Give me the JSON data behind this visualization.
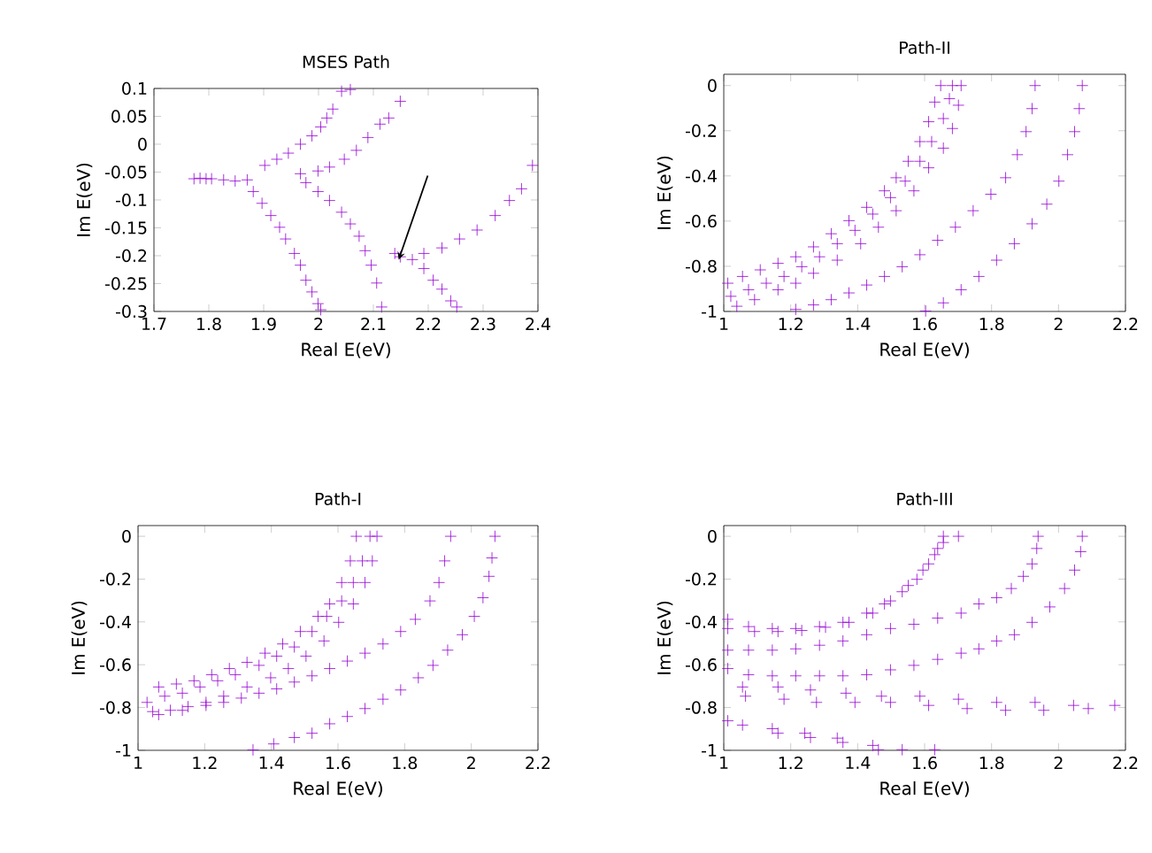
{
  "chart_data": [
    {
      "type": "scatter",
      "title": "MSES Path",
      "xlabel": "Real E(eV)",
      "ylabel": "Im E(eV)",
      "marker": "cross",
      "xlim": [
        1.7,
        2.4
      ],
      "xticks": [
        1.7,
        1.8,
        1.9,
        2,
        2.1,
        2.2,
        2.3,
        2.4
      ],
      "ylim": [
        -0.3,
        0.1
      ],
      "yticks": [
        0.1,
        0.05,
        0,
        -0.05,
        -0.1,
        -0.15,
        -0.2,
        -0.25,
        -0.3
      ],
      "series": [
        {
          "color": "#9400d3",
          "x": [
            1.773,
            1.784,
            1.795,
            1.805,
            1.827,
            1.848,
            1.87,
            1.902,
            1.924,
            1.945,
            1.967,
            1.988,
            2.004,
            2.015,
            2.026,
            2.042,
            2.058,
            1.967,
            1.999,
            2.02,
            2.047,
            2.069,
            2.09,
            2.112,
            2.128,
            2.149,
            1.881,
            1.897,
            1.913,
            1.929,
            1.94,
            1.956,
            1.967,
            1.977,
            1.988,
            1.999,
            2.004,
            1.977,
            1.999,
            2.02,
            2.042,
            2.058,
            2.074,
            2.085,
            2.096,
            2.106,
            2.115,
            2.139,
            2.149,
            2.171,
            2.192,
            2.209,
            2.225,
            2.241,
            2.252,
            2.192,
            2.225,
            2.257,
            2.289,
            2.322,
            2.348,
            2.37,
            2.39
          ],
          "values": [
            -0.062,
            -0.061,
            -0.062,
            -0.062,
            -0.064,
            -0.066,
            -0.064,
            -0.038,
            -0.027,
            -0.016,
            0.0,
            0.015,
            0.031,
            0.047,
            0.063,
            0.095,
            0.098,
            -0.053,
            -0.048,
            -0.041,
            -0.027,
            -0.011,
            0.012,
            0.036,
            0.047,
            0.077,
            -0.085,
            -0.106,
            -0.128,
            -0.149,
            -0.17,
            -0.196,
            -0.217,
            -0.244,
            -0.265,
            -0.286,
            -0.297,
            -0.069,
            -0.085,
            -0.101,
            -0.122,
            -0.143,
            -0.165,
            -0.191,
            -0.217,
            -0.249,
            -0.292,
            -0.196,
            -0.202,
            -0.207,
            -0.223,
            -0.244,
            -0.26,
            -0.281,
            -0.292,
            -0.196,
            -0.186,
            -0.17,
            -0.154,
            -0.128,
            -0.101,
            -0.08,
            -0.038
          ]
        }
      ]
    },
    {
      "type": "scatter",
      "title": "Path-II",
      "xlabel": "Real E(eV)",
      "ylabel": "Im E(eV)",
      "marker": "cross",
      "xlim": [
        1,
        2.2
      ],
      "xticks": [
        1,
        1.2,
        1.4,
        1.6,
        1.8,
        2,
        2.2
      ],
      "ylim": [
        -1,
        0.05
      ],
      "yticks": [
        0,
        -0.2,
        -0.4,
        -0.6,
        -0.8,
        -1
      ],
      "series": [
        {
          "color": "#9400d3",
          "x": [
            1.012,
            1.056,
            1.109,
            1.162,
            1.215,
            1.268,
            1.321,
            1.374,
            1.427,
            1.48,
            1.515,
            1.551,
            1.586,
            1.612,
            1.63,
            1.648,
            1.021,
            1.074,
            1.127,
            1.18,
            1.233,
            1.286,
            1.339,
            1.392,
            1.445,
            1.498,
            1.542,
            1.586,
            1.621,
            1.656,
            1.674,
            1.683,
            1.039,
            1.092,
            1.162,
            1.215,
            1.268,
            1.339,
            1.409,
            1.462,
            1.515,
            1.568,
            1.612,
            1.656,
            1.683,
            1.701,
            1.709,
            1.215,
            1.268,
            1.321,
            1.374,
            1.427,
            1.48,
            1.533,
            1.586,
            1.639,
            1.692,
            1.745,
            1.798,
            1.842,
            1.877,
            1.903,
            1.921,
            1.93,
            1.603,
            1.656,
            1.709,
            1.762,
            1.815,
            1.868,
            1.921,
            1.965,
            2.001,
            2.027,
            2.048,
            2.062,
            2.071
          ],
          "values": [
            -0.875,
            -0.845,
            -0.816,
            -0.787,
            -0.758,
            -0.714,
            -0.656,
            -0.598,
            -0.539,
            -0.466,
            -0.408,
            -0.335,
            -0.248,
            -0.16,
            -0.073,
            0,
            -0.933,
            -0.904,
            -0.875,
            -0.845,
            -0.802,
            -0.758,
            -0.7,
            -0.641,
            -0.569,
            -0.496,
            -0.423,
            -0.335,
            -0.248,
            -0.146,
            -0.058,
            0,
            -0.977,
            -0.948,
            -0.904,
            -0.875,
            -0.831,
            -0.773,
            -0.7,
            -0.627,
            -0.554,
            -0.466,
            -0.364,
            -0.277,
            -0.19,
            -0.087,
            0,
            -0.991,
            -0.971,
            -0.948,
            -0.918,
            -0.883,
            -0.845,
            -0.802,
            -0.749,
            -0.685,
            -0.627,
            -0.554,
            -0.481,
            -0.408,
            -0.306,
            -0.204,
            -0.102,
            0,
            -0.998,
            -0.962,
            -0.904,
            -0.845,
            -0.773,
            -0.7,
            -0.612,
            -0.525,
            -0.423,
            -0.306,
            -0.204,
            -0.102,
            0
          ]
        }
      ]
    },
    {
      "type": "scatter",
      "title": "Path-I",
      "xlabel": "Real E(eV)",
      "ylabel": "Im E(eV)",
      "marker": "cross",
      "xlim": [
        1,
        2.2
      ],
      "xticks": [
        1,
        1.2,
        1.4,
        1.6,
        1.8,
        2,
        2.2
      ],
      "ylim": [
        -1,
        0.05
      ],
      "yticks": [
        0,
        -0.2,
        -0.4,
        -0.6,
        -0.8,
        -1
      ],
      "series": [
        {
          "color": "#9400d3",
          "x": [
            1.062,
            1.115,
            1.168,
            1.221,
            1.274,
            1.327,
            1.381,
            1.434,
            1.487,
            1.54,
            1.575,
            1.611,
            1.637,
            1.655,
            1.027,
            1.08,
            1.133,
            1.186,
            1.239,
            1.292,
            1.363,
            1.416,
            1.469,
            1.522,
            1.566,
            1.611,
            1.646,
            1.673,
            1.696,
            1.044,
            1.097,
            1.15,
            1.204,
            1.257,
            1.327,
            1.398,
            1.451,
            1.504,
            1.558,
            1.602,
            1.646,
            1.681,
            1.703,
            1.717,
            1.062,
            1.133,
            1.204,
            1.257,
            1.31,
            1.363,
            1.416,
            1.469,
            1.522,
            1.575,
            1.628,
            1.681,
            1.735,
            1.788,
            1.832,
            1.876,
            1.903,
            1.92,
            1.938,
            1.345,
            1.407,
            1.469,
            1.522,
            1.575,
            1.628,
            1.681,
            1.735,
            1.788,
            1.841,
            1.885,
            1.929,
            1.973,
            2.009,
            2.035,
            2.053,
            2.062,
            2.071
          ],
          "values": [
            -0.704,
            -0.69,
            -0.675,
            -0.647,
            -0.618,
            -0.589,
            -0.546,
            -0.503,
            -0.445,
            -0.374,
            -0.316,
            -0.216,
            -0.115,
            0,
            -0.776,
            -0.747,
            -0.733,
            -0.704,
            -0.675,
            -0.647,
            -0.603,
            -0.56,
            -0.517,
            -0.445,
            -0.374,
            -0.302,
            -0.216,
            -0.115,
            0,
            -0.819,
            -0.813,
            -0.796,
            -0.776,
            -0.747,
            -0.704,
            -0.661,
            -0.618,
            -0.56,
            -0.489,
            -0.402,
            -0.316,
            -0.216,
            -0.115,
            0,
            -0.833,
            -0.813,
            -0.79,
            -0.776,
            -0.756,
            -0.733,
            -0.713,
            -0.681,
            -0.652,
            -0.618,
            -0.583,
            -0.546,
            -0.503,
            -0.445,
            -0.388,
            -0.302,
            -0.216,
            -0.115,
            0,
            -0.998,
            -0.97,
            -0.94,
            -0.92,
            -0.876,
            -0.842,
            -0.805,
            -0.761,
            -0.718,
            -0.661,
            -0.603,
            -0.532,
            -0.46,
            -0.374,
            -0.287,
            -0.187,
            -0.101,
            0
          ]
        }
      ]
    },
    {
      "type": "scatter",
      "title": "Path-III",
      "xlabel": "Real E(eV)",
      "ylabel": "Im E(eV)",
      "marker": "cross",
      "xlim": [
        1,
        2.2
      ],
      "xticks": [
        1,
        1.2,
        1.4,
        1.6,
        1.8,
        2,
        2.2
      ],
      "ylim": [
        -1,
        0.05
      ],
      "yticks": [
        0,
        -0.2,
        -0.4,
        -0.6,
        -0.8,
        -1
      ],
      "series": [
        {
          "color": "#9400d3",
          "x": [
            1.012,
            1.074,
            1.145,
            1.215,
            1.286,
            1.356,
            1.427,
            1.48,
            1.533,
            1.577,
            1.612,
            1.639,
            1.656,
            1.012,
            1.092,
            1.162,
            1.233,
            1.304,
            1.374,
            1.445,
            1.498,
            1.551,
            1.595,
            1.63,
            1.656,
            1.701,
            1.012,
            1.074,
            1.145,
            1.215,
            1.286,
            1.356,
            1.427,
            1.498,
            1.568,
            1.639,
            1.709,
            1.762,
            1.815,
            1.859,
            1.895,
            1.921,
            1.935,
            1.939,
            1.012,
            1.074,
            1.145,
            1.215,
            1.286,
            1.356,
            1.427,
            1.498,
            1.568,
            1.639,
            1.709,
            1.762,
            1.815,
            1.868,
            1.921,
            1.974,
            2.018,
            2.048,
            2.066,
            2.071,
            1.056,
            1.065,
            1.162,
            1.18,
            1.259,
            1.277,
            1.365,
            1.392,
            1.471,
            1.498,
            1.586,
            1.612,
            1.701,
            1.727,
            1.815,
            1.842,
            1.93,
            1.956,
            2.045,
            2.089,
            2.168,
            1.012,
            1.056,
            1.145,
            1.162,
            1.242,
            1.259,
            1.339,
            1.356,
            1.445,
            1.462,
            1.533,
            1.63
          ],
          "values": [
            -0.388,
            -0.422,
            -0.431,
            -0.431,
            -0.422,
            -0.402,
            -0.359,
            -0.316,
            -0.259,
            -0.201,
            -0.129,
            -0.057,
            0,
            -0.431,
            -0.445,
            -0.445,
            -0.44,
            -0.425,
            -0.402,
            -0.359,
            -0.302,
            -0.23,
            -0.158,
            -0.086,
            -0.029,
            0,
            -0.532,
            -0.532,
            -0.532,
            -0.526,
            -0.509,
            -0.489,
            -0.46,
            -0.431,
            -0.411,
            -0.382,
            -0.359,
            -0.316,
            -0.287,
            -0.244,
            -0.187,
            -0.129,
            -0.057,
            0,
            -0.618,
            -0.647,
            -0.652,
            -0.652,
            -0.652,
            -0.652,
            -0.647,
            -0.624,
            -0.603,
            -0.575,
            -0.546,
            -0.526,
            -0.489,
            -0.46,
            -0.402,
            -0.33,
            -0.244,
            -0.158,
            -0.072,
            0,
            -0.704,
            -0.747,
            -0.704,
            -0.761,
            -0.718,
            -0.776,
            -0.733,
            -0.776,
            -0.747,
            -0.776,
            -0.747,
            -0.79,
            -0.761,
            -0.805,
            -0.776,
            -0.813,
            -0.776,
            -0.813,
            -0.79,
            -0.805,
            -0.79,
            -0.862,
            -0.882,
            -0.899,
            -0.92,
            -0.92,
            -0.94,
            -0.943,
            -0.963,
            -0.977,
            -0.997,
            -0.997,
            -0.997
          ]
        }
      ]
    }
  ]
}
